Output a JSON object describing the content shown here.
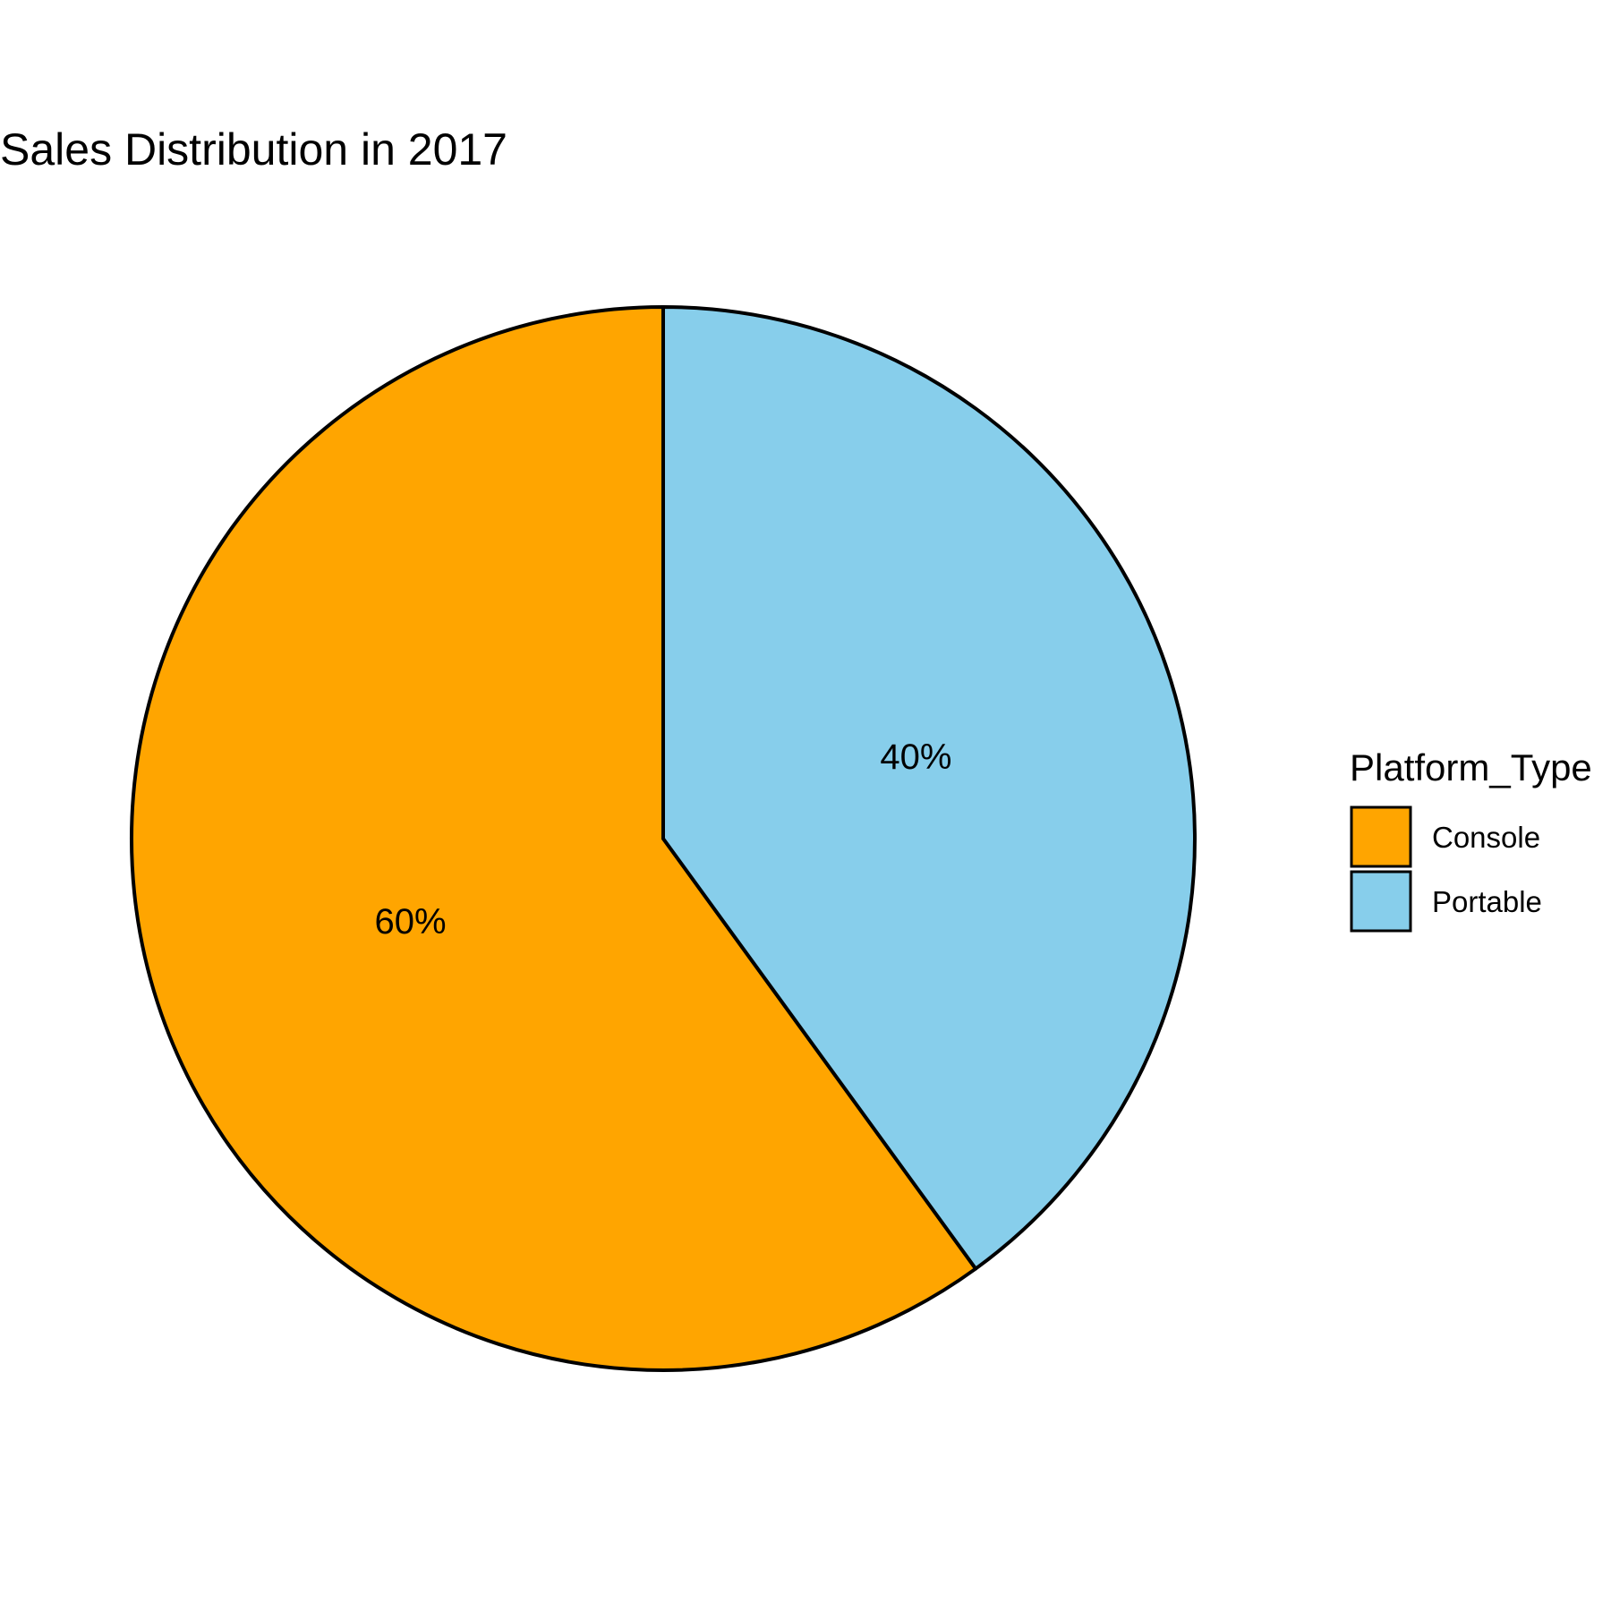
{
  "chart_data": {
    "type": "pie",
    "title": "Sales Distribution in 2017",
    "legend_title": "Platform_Type",
    "legend_position": "right",
    "slices": [
      {
        "name": "Console",
        "value": 60,
        "label": "60%",
        "color": "#FFA500"
      },
      {
        "name": "Portable",
        "value": 40,
        "label": "40%",
        "color": "#87CEEB"
      }
    ],
    "stroke_color": "#000000"
  }
}
